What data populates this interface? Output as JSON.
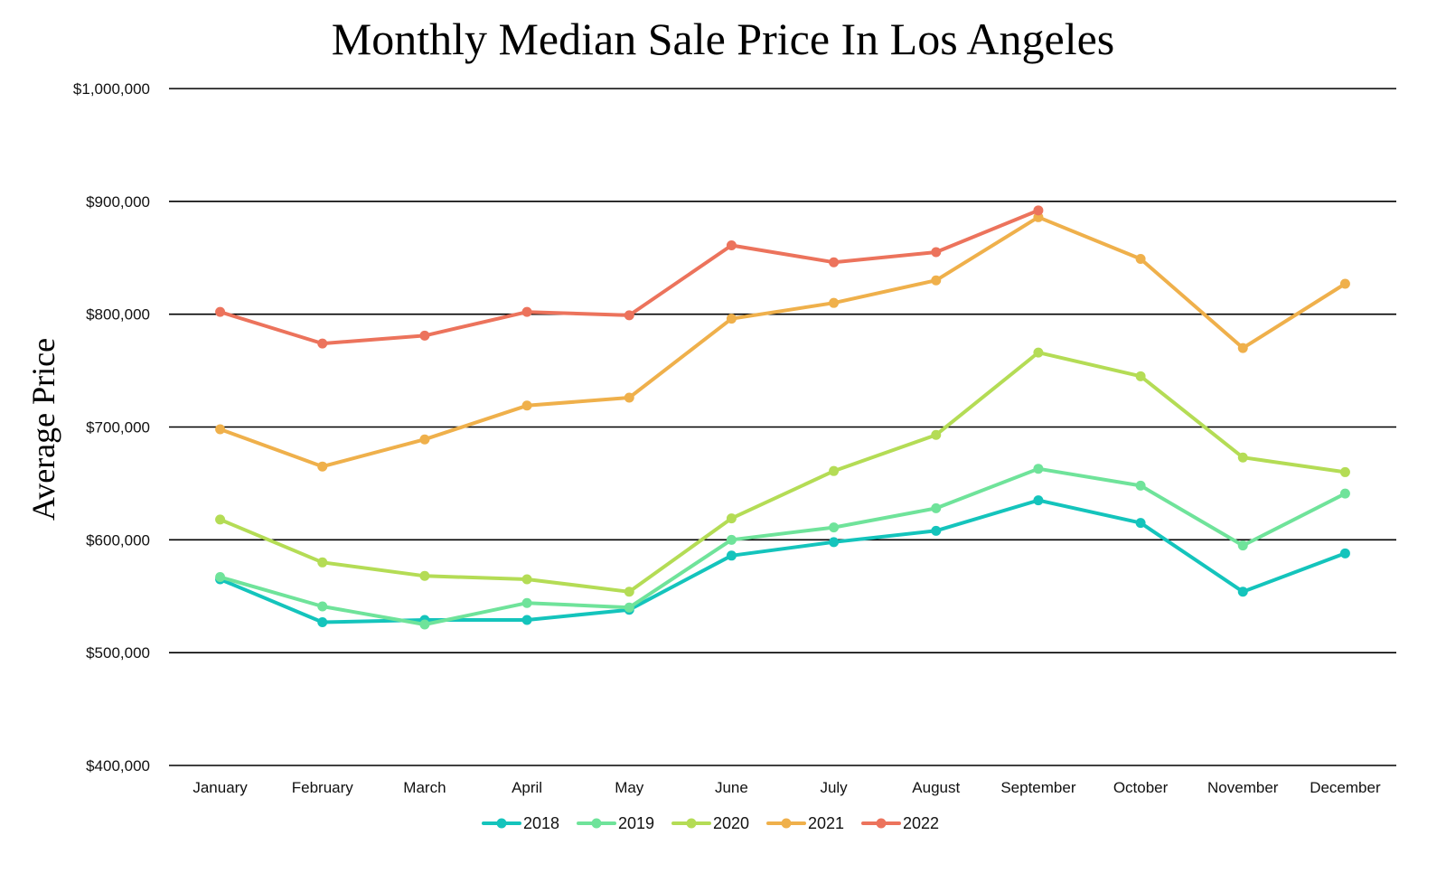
{
  "chart_data": {
    "type": "line",
    "title": "Monthly Median Sale Price In Los Angeles",
    "ylabel": "Average Price",
    "xlabel": "",
    "categories": [
      "January",
      "February",
      "March",
      "April",
      "May",
      "June",
      "July",
      "August",
      "September",
      "October",
      "November",
      "December"
    ],
    "ylim": [
      400000,
      1000000
    ],
    "yticks": [
      400000,
      500000,
      600000,
      700000,
      800000,
      900000,
      1000000
    ],
    "ytick_labels": [
      "$400,000",
      "$500,000",
      "$600,000",
      "$700,000",
      "$800,000",
      "$900,000",
      "$1,000,000"
    ],
    "grid": "horizontal",
    "legend": "bottom",
    "series": [
      {
        "name": "2018",
        "color": "#14c4bc",
        "values": [
          565000,
          527000,
          529000,
          529000,
          538000,
          586000,
          598000,
          608000,
          635000,
          615000,
          554000,
          588000
        ]
      },
      {
        "name": "2019",
        "color": "#6fe39a",
        "values": [
          567000,
          541000,
          525000,
          544000,
          540000,
          600000,
          611000,
          628000,
          663000,
          648000,
          595000,
          641000
        ]
      },
      {
        "name": "2020",
        "color": "#b4dc55",
        "values": [
          618000,
          580000,
          568000,
          565000,
          554000,
          619000,
          661000,
          693000,
          766000,
          745000,
          673000,
          660000
        ]
      },
      {
        "name": "2021",
        "color": "#efb04b",
        "values": [
          698000,
          665000,
          689000,
          719000,
          726000,
          796000,
          810000,
          830000,
          886000,
          849000,
          770000,
          827000
        ]
      },
      {
        "name": "2022",
        "color": "#ec735c",
        "values": [
          802000,
          774000,
          781000,
          802000,
          799000,
          861000,
          846000,
          855000,
          892000,
          null,
          null,
          null
        ]
      }
    ]
  }
}
